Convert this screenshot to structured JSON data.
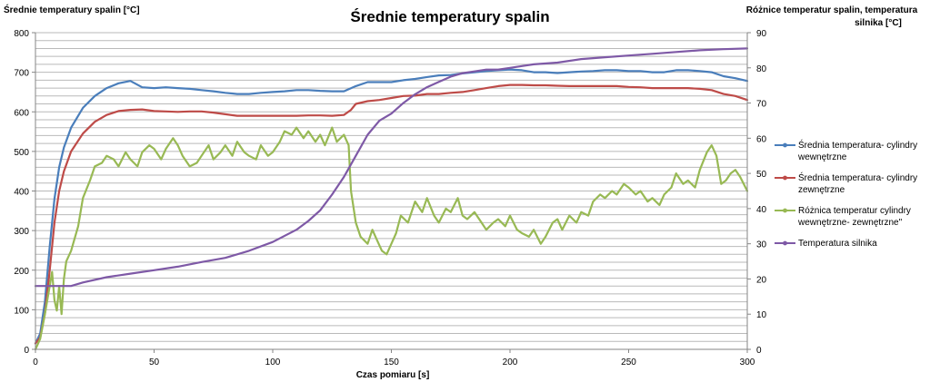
{
  "chart_data": {
    "type": "line",
    "title": "Średnie temperatury spalin",
    "xlabel": "Czas pomiaru [s]",
    "ylabel_left": "Średnie temperatury spalin  [°C]",
    "ylabel_right_lines": [
      "Różnice temperatur spalin,  temperatura",
      "silnika [°C]"
    ],
    "xlim": [
      0,
      300
    ],
    "ylim_left": [
      0,
      800
    ],
    "ylim_right": [
      0,
      90
    ],
    "x_ticks": [
      0,
      50,
      100,
      150,
      200,
      250,
      300
    ],
    "y_left_ticks": [
      0,
      100,
      200,
      300,
      400,
      500,
      600,
      700,
      800
    ],
    "y_right_ticks": [
      0,
      10,
      20,
      30,
      40,
      50,
      60,
      70,
      80,
      90
    ],
    "grid": true,
    "legend_position": "right",
    "series": [
      {
        "name_lines": [
          "Średnia temperatura- cylindry",
          "wewnętrzne"
        ],
        "color": "#4a7ebb",
        "axis": "left",
        "points": [
          [
            0,
            15
          ],
          [
            2,
            40
          ],
          [
            4,
            120
          ],
          [
            6,
            260
          ],
          [
            8,
            380
          ],
          [
            10,
            460
          ],
          [
            12,
            510
          ],
          [
            15,
            560
          ],
          [
            20,
            610
          ],
          [
            25,
            640
          ],
          [
            30,
            660
          ],
          [
            35,
            672
          ],
          [
            40,
            678
          ],
          [
            45,
            662
          ],
          [
            50,
            660
          ],
          [
            55,
            662
          ],
          [
            60,
            660
          ],
          [
            65,
            658
          ],
          [
            70,
            655
          ],
          [
            75,
            652
          ],
          [
            80,
            648
          ],
          [
            85,
            645
          ],
          [
            90,
            645
          ],
          [
            95,
            648
          ],
          [
            100,
            650
          ],
          [
            105,
            652
          ],
          [
            110,
            655
          ],
          [
            115,
            655
          ],
          [
            120,
            653
          ],
          [
            125,
            652
          ],
          [
            130,
            652
          ],
          [
            135,
            665
          ],
          [
            140,
            675
          ],
          [
            145,
            675
          ],
          [
            150,
            675
          ],
          [
            155,
            680
          ],
          [
            160,
            683
          ],
          [
            165,
            688
          ],
          [
            170,
            692
          ],
          [
            175,
            693
          ],
          [
            180,
            697
          ],
          [
            185,
            700
          ],
          [
            190,
            703
          ],
          [
            195,
            705
          ],
          [
            200,
            707
          ],
          [
            205,
            705
          ],
          [
            210,
            700
          ],
          [
            215,
            700
          ],
          [
            220,
            698
          ],
          [
            225,
            700
          ],
          [
            230,
            702
          ],
          [
            235,
            703
          ],
          [
            240,
            705
          ],
          [
            245,
            705
          ],
          [
            250,
            703
          ],
          [
            255,
            703
          ],
          [
            260,
            700
          ],
          [
            265,
            700
          ],
          [
            270,
            705
          ],
          [
            275,
            705
          ],
          [
            280,
            703
          ],
          [
            285,
            700
          ],
          [
            290,
            690
          ],
          [
            295,
            685
          ],
          [
            300,
            678
          ]
        ]
      },
      {
        "name_lines": [
          "Średnia temperatura- cylindry",
          "zewnętrzne"
        ],
        "color": "#be4b48",
        "axis": "left",
        "points": [
          [
            0,
            15
          ],
          [
            2,
            30
          ],
          [
            4,
            90
          ],
          [
            6,
            200
          ],
          [
            8,
            320
          ],
          [
            10,
            400
          ],
          [
            12,
            450
          ],
          [
            15,
            500
          ],
          [
            20,
            545
          ],
          [
            25,
            575
          ],
          [
            30,
            592
          ],
          [
            35,
            602
          ],
          [
            40,
            605
          ],
          [
            45,
            606
          ],
          [
            50,
            602
          ],
          [
            55,
            601
          ],
          [
            60,
            600
          ],
          [
            65,
            601
          ],
          [
            70,
            601
          ],
          [
            75,
            598
          ],
          [
            80,
            594
          ],
          [
            85,
            590
          ],
          [
            90,
            590
          ],
          [
            95,
            590
          ],
          [
            100,
            590
          ],
          [
            105,
            590
          ],
          [
            110,
            590
          ],
          [
            115,
            591
          ],
          [
            120,
            591
          ],
          [
            125,
            590
          ],
          [
            130,
            592
          ],
          [
            133,
            605
          ],
          [
            135,
            620
          ],
          [
            140,
            627
          ],
          [
            145,
            630
          ],
          [
            150,
            635
          ],
          [
            155,
            640
          ],
          [
            160,
            641
          ],
          [
            165,
            645
          ],
          [
            170,
            645
          ],
          [
            175,
            648
          ],
          [
            180,
            650
          ],
          [
            185,
            655
          ],
          [
            190,
            660
          ],
          [
            195,
            665
          ],
          [
            200,
            668
          ],
          [
            205,
            668
          ],
          [
            210,
            667
          ],
          [
            215,
            667
          ],
          [
            220,
            666
          ],
          [
            225,
            665
          ],
          [
            230,
            665
          ],
          [
            235,
            665
          ],
          [
            240,
            665
          ],
          [
            245,
            665
          ],
          [
            250,
            663
          ],
          [
            255,
            662
          ],
          [
            260,
            660
          ],
          [
            265,
            660
          ],
          [
            270,
            660
          ],
          [
            275,
            660
          ],
          [
            280,
            658
          ],
          [
            285,
            655
          ],
          [
            290,
            645
          ],
          [
            295,
            640
          ],
          [
            300,
            630
          ]
        ]
      },
      {
        "name_lines": [
          "Różnica temperatur cylindry",
          "wewnętrzne- zewnętrzne\""
        ],
        "color": "#98b954",
        "axis": "right",
        "points": [
          [
            0,
            0
          ],
          [
            2,
            3
          ],
          [
            4,
            10
          ],
          [
            6,
            18
          ],
          [
            7,
            22
          ],
          [
            8,
            14
          ],
          [
            9,
            11
          ],
          [
            10,
            18
          ],
          [
            11,
            10
          ],
          [
            12,
            20
          ],
          [
            13,
            25
          ],
          [
            15,
            28
          ],
          [
            18,
            35
          ],
          [
            20,
            43
          ],
          [
            23,
            48
          ],
          [
            25,
            52
          ],
          [
            28,
            53
          ],
          [
            30,
            55
          ],
          [
            33,
            54
          ],
          [
            35,
            52
          ],
          [
            38,
            56
          ],
          [
            40,
            54
          ],
          [
            43,
            52
          ],
          [
            45,
            56
          ],
          [
            48,
            58
          ],
          [
            50,
            57
          ],
          [
            53,
            54
          ],
          [
            55,
            57
          ],
          [
            58,
            60
          ],
          [
            60,
            58
          ],
          [
            62,
            55
          ],
          [
            65,
            52
          ],
          [
            68,
            53
          ],
          [
            70,
            55
          ],
          [
            73,
            58
          ],
          [
            75,
            54
          ],
          [
            78,
            56
          ],
          [
            80,
            58
          ],
          [
            83,
            55
          ],
          [
            85,
            59
          ],
          [
            88,
            56
          ],
          [
            90,
            55
          ],
          [
            93,
            54
          ],
          [
            95,
            58
          ],
          [
            98,
            55
          ],
          [
            100,
            56
          ],
          [
            103,
            59
          ],
          [
            105,
            62
          ],
          [
            108,
            61
          ],
          [
            110,
            63
          ],
          [
            113,
            60
          ],
          [
            115,
            62
          ],
          [
            118,
            59
          ],
          [
            120,
            61
          ],
          [
            122,
            58
          ],
          [
            125,
            63
          ],
          [
            127,
            59
          ],
          [
            130,
            61
          ],
          [
            132,
            58
          ],
          [
            133,
            45
          ],
          [
            135,
            36
          ],
          [
            137,
            32
          ],
          [
            140,
            30
          ],
          [
            142,
            34
          ],
          [
            144,
            31
          ],
          [
            146,
            28
          ],
          [
            148,
            27
          ],
          [
            150,
            30
          ],
          [
            152,
            33
          ],
          [
            154,
            38
          ],
          [
            157,
            36
          ],
          [
            160,
            42
          ],
          [
            163,
            39
          ],
          [
            165,
            43
          ],
          [
            168,
            38
          ],
          [
            170,
            36
          ],
          [
            173,
            40
          ],
          [
            175,
            39
          ],
          [
            178,
            43
          ],
          [
            180,
            38
          ],
          [
            182,
            37
          ],
          [
            185,
            39
          ],
          [
            188,
            36
          ],
          [
            190,
            34
          ],
          [
            193,
            36
          ],
          [
            195,
            37
          ],
          [
            198,
            35
          ],
          [
            200,
            38
          ],
          [
            203,
            34
          ],
          [
            205,
            33
          ],
          [
            208,
            32
          ],
          [
            210,
            34
          ],
          [
            213,
            30
          ],
          [
            215,
            32
          ],
          [
            218,
            36
          ],
          [
            220,
            37
          ],
          [
            222,
            34
          ],
          [
            225,
            38
          ],
          [
            228,
            36
          ],
          [
            230,
            39
          ],
          [
            233,
            38
          ],
          [
            235,
            42
          ],
          [
            238,
            44
          ],
          [
            240,
            43
          ],
          [
            243,
            45
          ],
          [
            245,
            44
          ],
          [
            248,
            47
          ],
          [
            250,
            46
          ],
          [
            253,
            44
          ],
          [
            255,
            45
          ],
          [
            258,
            42
          ],
          [
            260,
            43
          ],
          [
            263,
            41
          ],
          [
            265,
            44
          ],
          [
            268,
            46
          ],
          [
            270,
            50
          ],
          [
            273,
            47
          ],
          [
            275,
            48
          ],
          [
            278,
            46
          ],
          [
            280,
            51
          ],
          [
            283,
            56
          ],
          [
            285,
            58
          ],
          [
            287,
            55
          ],
          [
            289,
            47
          ],
          [
            291,
            48
          ],
          [
            293,
            50
          ],
          [
            295,
            51
          ],
          [
            297,
            49
          ],
          [
            300,
            45
          ]
        ]
      },
      {
        "name": "Temperatura silnika",
        "color": "#7e59a6",
        "axis": "right",
        "points": [
          [
            0,
            18
          ],
          [
            15,
            18
          ],
          [
            20,
            19
          ],
          [
            30,
            20.5
          ],
          [
            40,
            21.5
          ],
          [
            50,
            22.5
          ],
          [
            60,
            23.5
          ],
          [
            70,
            24.8
          ],
          [
            80,
            26
          ],
          [
            90,
            28
          ],
          [
            100,
            30.5
          ],
          [
            110,
            34
          ],
          [
            115,
            36.5
          ],
          [
            120,
            39.5
          ],
          [
            125,
            44
          ],
          [
            130,
            49
          ],
          [
            135,
            55
          ],
          [
            140,
            61
          ],
          [
            145,
            65
          ],
          [
            150,
            67
          ],
          [
            155,
            70
          ],
          [
            160,
            72.5
          ],
          [
            165,
            74.5
          ],
          [
            170,
            76
          ],
          [
            175,
            77.5
          ],
          [
            180,
            78.5
          ],
          [
            185,
            79
          ],
          [
            190,
            79.5
          ],
          [
            195,
            79.5
          ],
          [
            200,
            80
          ],
          [
            205,
            80.5
          ],
          [
            210,
            81
          ],
          [
            220,
            81.5
          ],
          [
            230,
            82.5
          ],
          [
            240,
            83
          ],
          [
            250,
            83.5
          ],
          [
            260,
            84
          ],
          [
            270,
            84.5
          ],
          [
            280,
            85
          ],
          [
            290,
            85.3
          ],
          [
            300,
            85.5
          ]
        ]
      }
    ]
  }
}
